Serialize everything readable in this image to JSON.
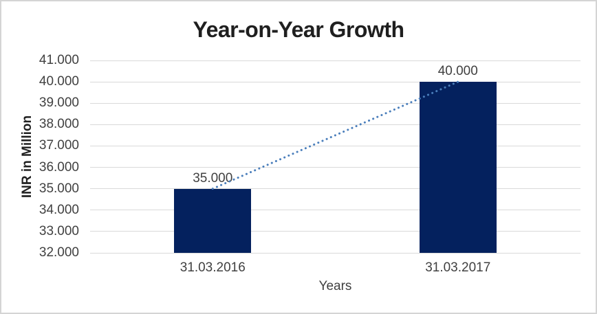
{
  "chart_data": {
    "type": "bar",
    "title": "Year-on-Year Growth",
    "xlabel": "Years",
    "ylabel": "INR in Million",
    "categories": [
      "31.03.2016",
      "31.03.2017"
    ],
    "values": [
      35000,
      40000
    ],
    "data_labels": [
      "35.000",
      "40.000"
    ],
    "ylim": [
      32000,
      41000
    ],
    "y_tick_interval": 1000,
    "y_ticks": [
      {
        "value": 32000,
        "label": "32.000"
      },
      {
        "value": 33000,
        "label": "33.000"
      },
      {
        "value": 34000,
        "label": "34.000"
      },
      {
        "value": 35000,
        "label": "35.000"
      },
      {
        "value": 36000,
        "label": "36.000"
      },
      {
        "value": 37000,
        "label": "37.000"
      },
      {
        "value": 38000,
        "label": "38.000"
      },
      {
        "value": 39000,
        "label": "39.000"
      },
      {
        "value": 40000,
        "label": "40.000"
      },
      {
        "value": 41000,
        "label": "41.000"
      }
    ],
    "grid": true,
    "legend": false,
    "trendline": {
      "style": "dotted",
      "points": [
        {
          "category_index": 0,
          "value": 35000
        },
        {
          "category_index": 1,
          "value": 40000
        }
      ]
    },
    "colors": {
      "bar": "#04215E",
      "trendline": "#4A7EBB",
      "gridline": "#D9D9D9",
      "title_text": "#1F1F1F",
      "axis_text": "#404040",
      "frame_border": "#D4D4D4"
    }
  }
}
